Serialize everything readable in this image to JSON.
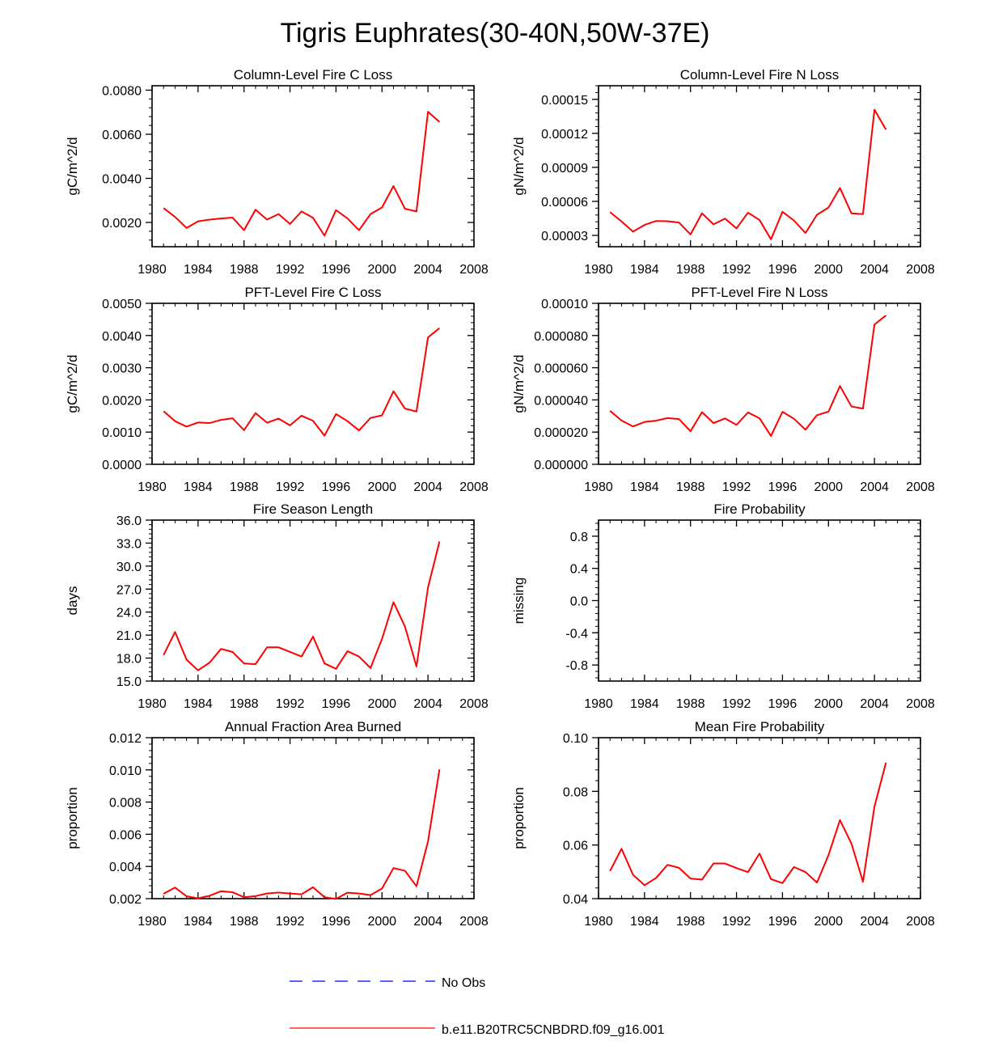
{
  "figure": {
    "title": "Tigris Euphrates(30-40N,50W-37E)",
    "legend": [
      {
        "label": "No Obs",
        "color": "#0000ff",
        "style": "dashed"
      },
      {
        "label": "b.e11.B20TRC5CNBDRD.f09_g16.001",
        "color": "#ff0000",
        "style": "solid"
      }
    ]
  },
  "chart_data": [
    {
      "type": "line",
      "title": "Column-Level Fire C Loss",
      "ylabel": "gC/m^2/d",
      "xlim": [
        1980,
        2008
      ],
      "ylim": [
        0.0009,
        0.0082
      ],
      "xticks": [
        1980,
        1984,
        1988,
        1992,
        1996,
        2000,
        2004,
        2008
      ],
      "xtick_labels": [
        "1980",
        "1984",
        "1988",
        "1992",
        "1996",
        "2000",
        "2004",
        "2008"
      ],
      "yticks": [
        0.002,
        0.004,
        0.006,
        0.008
      ],
      "ytick_labels": [
        "0.0020",
        "0.0040",
        "0.0060",
        "0.0080"
      ],
      "x": [
        1981,
        1982,
        1983,
        1984,
        1985,
        1986,
        1987,
        1988,
        1989,
        1990,
        1991,
        1992,
        1993,
        1994,
        1995,
        1996,
        1997,
        1998,
        1999,
        2000,
        2001,
        2002,
        2003,
        2004,
        2005
      ],
      "series": [
        {
          "color": "#ff0000",
          "values": [
            0.00265,
            0.00225,
            0.00175,
            0.00205,
            0.00213,
            0.00218,
            0.00222,
            0.00165,
            0.00258,
            0.00213,
            0.00238,
            0.00193,
            0.0025,
            0.00221,
            0.0014,
            0.00256,
            0.00218,
            0.00165,
            0.00238,
            0.00268,
            0.00365,
            0.00262,
            0.0025,
            0.00702,
            0.00656
          ]
        }
      ]
    },
    {
      "type": "line",
      "title": "Column-Level Fire N Loss",
      "ylabel": "gN/m^2/d",
      "xlim": [
        1980,
        2008
      ],
      "ylim": [
        2e-05,
        0.000162
      ],
      "xticks": [
        1980,
        1984,
        1988,
        1992,
        1996,
        2000,
        2004,
        2008
      ],
      "xtick_labels": [
        "1980",
        "1984",
        "1988",
        "1992",
        "1996",
        "2000",
        "2004",
        "2008"
      ],
      "yticks": [
        3e-05,
        6e-05,
        9e-05,
        0.00012,
        0.00015
      ],
      "ytick_labels": [
        "0.00003",
        "0.00006",
        "0.00009",
        "0.00012",
        "0.00015"
      ],
      "x": [
        1981,
        1982,
        1983,
        1984,
        1985,
        1986,
        1987,
        1988,
        1989,
        1990,
        1991,
        1992,
        1993,
        1994,
        1995,
        1996,
        1997,
        1998,
        1999,
        2000,
        2001,
        2002,
        2003,
        2004,
        2005
      ],
      "series": [
        {
          "color": "#ff0000",
          "values": [
            5.05e-05,
            4.23e-05,
            3.33e-05,
            3.92e-05,
            4.27e-05,
            4.25e-05,
            4.13e-05,
            3.08e-05,
            4.95e-05,
            3.97e-05,
            4.48e-05,
            3.62e-05,
            5e-05,
            4.36e-05,
            2.65e-05,
            5.08e-05,
            4.31e-05,
            3.21e-05,
            4.82e-05,
            5.45e-05,
            7.18e-05,
            4.94e-05,
            4.87e-05,
            0.0001409,
            0.0001233
          ]
        }
      ]
    },
    {
      "type": "line",
      "title": "PFT-Level Fire C Loss",
      "ylabel": "gC/m^2/d",
      "xlim": [
        1980,
        2008
      ],
      "ylim": [
        0,
        0.005
      ],
      "xticks": [
        1980,
        1984,
        1988,
        1992,
        1996,
        2000,
        2004,
        2008
      ],
      "xtick_labels": [
        "1980",
        "1984",
        "1988",
        "1992",
        "1996",
        "2000",
        "2004",
        "2008"
      ],
      "yticks": [
        0,
        0.001,
        0.002,
        0.003,
        0.004,
        0.005
      ],
      "ytick_labels": [
        "0.0000",
        "0.0010",
        "0.0020",
        "0.0030",
        "0.0040",
        "0.0050"
      ],
      "x": [
        1981,
        1982,
        1983,
        1984,
        1985,
        1986,
        1987,
        1988,
        1989,
        1990,
        1991,
        1992,
        1993,
        1994,
        1995,
        1996,
        1997,
        1998,
        1999,
        2000,
        2001,
        2002,
        2003,
        2004,
        2005
      ],
      "series": [
        {
          "color": "#ff0000",
          "values": [
            0.00165,
            0.00134,
            0.00117,
            0.0013,
            0.00128,
            0.00138,
            0.00143,
            0.00106,
            0.00159,
            0.00129,
            0.00142,
            0.00121,
            0.00151,
            0.00135,
            0.00089,
            0.00156,
            0.00134,
            0.00105,
            0.00144,
            0.00152,
            0.00227,
            0.00173,
            0.00164,
            0.00394,
            0.00423
          ]
        }
      ]
    },
    {
      "type": "line",
      "title": "PFT-Level Fire N Loss",
      "ylabel": "gN/m^2/d",
      "xlim": [
        1980,
        2008
      ],
      "ylim": [
        0,
        0.0001
      ],
      "xticks": [
        1980,
        1984,
        1988,
        1992,
        1996,
        2000,
        2004,
        2008
      ],
      "xtick_labels": [
        "1980",
        "1984",
        "1988",
        "1992",
        "1996",
        "2000",
        "2004",
        "2008"
      ],
      "yticks": [
        0,
        2e-05,
        4e-05,
        6e-05,
        8e-05,
        0.0001
      ],
      "ytick_labels": [
        "0.000000",
        "0.000020",
        "0.000040",
        "0.000060",
        "0.000080",
        "0.00010"
      ],
      "x": [
        1981,
        1982,
        1983,
        1984,
        1985,
        1986,
        1987,
        1988,
        1989,
        1990,
        1991,
        1992,
        1993,
        1994,
        1995,
        1996,
        1997,
        1998,
        1999,
        2000,
        2001,
        2002,
        2003,
        2004,
        2005
      ],
      "series": [
        {
          "color": "#ff0000",
          "values": [
            3.32e-05,
            2.72e-05,
            2.35e-05,
            2.63e-05,
            2.71e-05,
            2.87e-05,
            2.81e-05,
            2.05e-05,
            3.24e-05,
            2.56e-05,
            2.85e-05,
            2.45e-05,
            3.22e-05,
            2.86e-05,
            1.76e-05,
            3.26e-05,
            2.83e-05,
            2.15e-05,
            3.05e-05,
            3.27e-05,
            4.86e-05,
            3.59e-05,
            3.46e-05,
            8.68e-05,
            9.25e-05
          ]
        }
      ]
    },
    {
      "type": "line",
      "title": "Fire Season Length",
      "ylabel": "days",
      "xlim": [
        1980,
        2008
      ],
      "ylim": [
        15,
        36
      ],
      "xticks": [
        1980,
        1984,
        1988,
        1992,
        1996,
        2000,
        2004,
        2008
      ],
      "xtick_labels": [
        "1980",
        "1984",
        "1988",
        "1992",
        "1996",
        "2000",
        "2004",
        "2008"
      ],
      "yticks": [
        15,
        18,
        21,
        24,
        27,
        30,
        33,
        36
      ],
      "ytick_labels": [
        "15.0",
        "18.0",
        "21.0",
        "24.0",
        "27.0",
        "30.0",
        "33.0",
        "36.0"
      ],
      "x": [
        1981,
        1982,
        1983,
        1984,
        1985,
        1986,
        1987,
        1988,
        1989,
        1990,
        1991,
        1992,
        1993,
        1994,
        1995,
        1996,
        1997,
        1998,
        1999,
        2000,
        2001,
        2002,
        2003,
        2004,
        2005
      ],
      "series": [
        {
          "color": "#ff0000",
          "values": [
            18.4,
            21.4,
            17.8,
            16.4,
            17.4,
            19.2,
            18.8,
            17.3,
            17.2,
            19.4,
            19.4,
            18.8,
            18.2,
            20.8,
            17.3,
            16.6,
            18.9,
            18.2,
            16.7,
            20.5,
            25.3,
            22.1,
            16.9,
            27.2,
            33.2
          ]
        }
      ]
    },
    {
      "type": "line",
      "title": "Fire Probability",
      "ylabel": "missing",
      "xlim": [
        1980,
        2008
      ],
      "ylim": [
        -1,
        1
      ],
      "xticks": [
        1980,
        1984,
        1988,
        1992,
        1996,
        2000,
        2004,
        2008
      ],
      "xtick_labels": [
        "1980",
        "1984",
        "1988",
        "1992",
        "1996",
        "2000",
        "2004",
        "2008"
      ],
      "yticks": [
        -0.8,
        -0.4,
        0,
        0.4,
        0.8
      ],
      "ytick_labels": [
        "-0.8",
        "-0.4",
        "0.0",
        "0.4",
        "0.8"
      ],
      "x": [],
      "series": []
    },
    {
      "type": "line",
      "title": "Annual Fraction Area Burned",
      "ylabel": "proportion",
      "xlim": [
        1980,
        2008
      ],
      "ylim": [
        0.002,
        0.012
      ],
      "xticks": [
        1980,
        1984,
        1988,
        1992,
        1996,
        2000,
        2004,
        2008
      ],
      "xtick_labels": [
        "1980",
        "1984",
        "1988",
        "1992",
        "1996",
        "2000",
        "2004",
        "2008"
      ],
      "yticks": [
        0.002,
        0.004,
        0.006,
        0.008,
        0.01,
        0.012
      ],
      "ytick_labels": [
        "0.002",
        "0.004",
        "0.006",
        "0.008",
        "0.010",
        "0.012"
      ],
      "x": [
        1981,
        1982,
        1983,
        1984,
        1985,
        1986,
        1987,
        1988,
        1989,
        1990,
        1991,
        1992,
        1993,
        1994,
        1995,
        1996,
        1997,
        1998,
        1999,
        2000,
        2001,
        2002,
        2003,
        2004,
        2005
      ],
      "series": [
        {
          "color": "#ff0000",
          "values": [
            0.0023,
            0.00269,
            0.00215,
            0.00202,
            0.00218,
            0.00246,
            0.0024,
            0.00209,
            0.00216,
            0.00232,
            0.00238,
            0.00232,
            0.00227,
            0.00271,
            0.00209,
            0.00199,
            0.00237,
            0.00232,
            0.00222,
            0.00263,
            0.0039,
            0.00373,
            0.00277,
            0.00555,
            0.01003
          ]
        }
      ]
    },
    {
      "type": "line",
      "title": "Mean Fire Probability",
      "ylabel": "proportion",
      "xlim": [
        1980,
        2008
      ],
      "ylim": [
        0.04,
        0.1
      ],
      "xticks": [
        1980,
        1984,
        1988,
        1992,
        1996,
        2000,
        2004,
        2008
      ],
      "xtick_labels": [
        "1980",
        "1984",
        "1988",
        "1992",
        "1996",
        "2000",
        "2004",
        "2008"
      ],
      "yticks": [
        0.04,
        0.06,
        0.08,
        0.1
      ],
      "ytick_labels": [
        "0.04",
        "0.06",
        "0.08",
        "0.10"
      ],
      "x": [
        1981,
        1982,
        1983,
        1984,
        1985,
        1986,
        1987,
        1988,
        1989,
        1990,
        1991,
        1992,
        1993,
        1994,
        1995,
        1996,
        1997,
        1998,
        1999,
        2000,
        2001,
        2002,
        2003,
        2004,
        2005
      ],
      "series": [
        {
          "color": "#ff0000",
          "values": [
            0.0503,
            0.0586,
            0.0489,
            0.045,
            0.0477,
            0.0526,
            0.0515,
            0.0475,
            0.0471,
            0.0531,
            0.0531,
            0.0514,
            0.0499,
            0.0568,
            0.0473,
            0.0458,
            0.0518,
            0.0499,
            0.046,
            0.0562,
            0.0693,
            0.0605,
            0.0463,
            0.0743,
            0.0907
          ]
        }
      ]
    }
  ]
}
